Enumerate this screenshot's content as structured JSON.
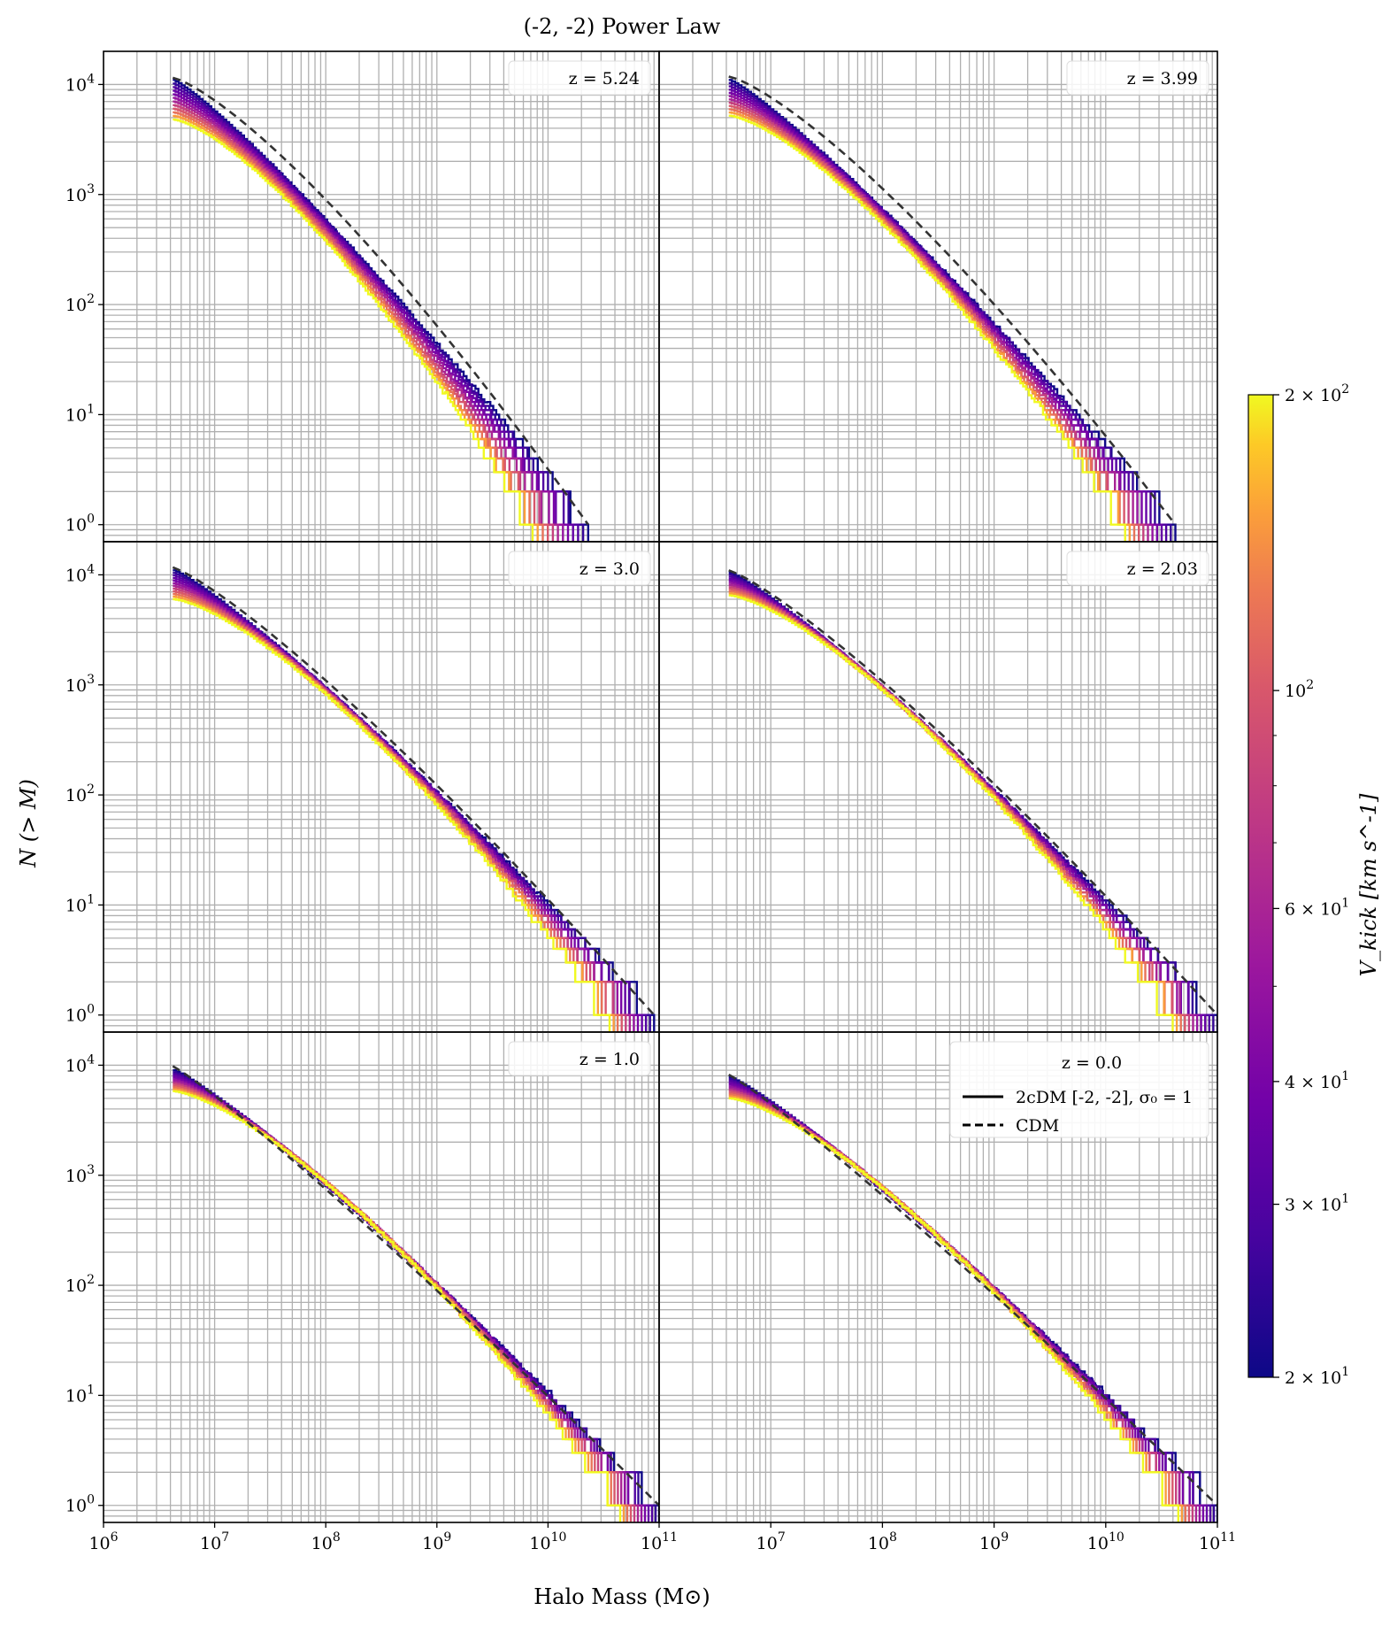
{
  "chart_data": {
    "type": "line",
    "title": "(-2, -2) Power Law",
    "xlabel": "Halo Mass (M⊙)",
    "ylabel": "N (> M)",
    "xscale": "log",
    "yscale": "log",
    "xlim": [
      1000000,
      100000000000
    ],
    "ylim": [
      0.7,
      20000
    ],
    "grid": true,
    "x_tick_labels": [
      "10^6",
      "10^7",
      "10^8",
      "10^9",
      "10^10",
      "10^11"
    ],
    "y_tick_labels": [
      "10^0",
      "10^1",
      "10^2",
      "10^3",
      "10^4"
    ],
    "colorbar": {
      "label": "V_kick [km s^-1]",
      "scale": "log",
      "range": [
        20,
        200
      ],
      "colormap": "plasma",
      "tick_labels": [
        "2 × 10^1",
        "3 × 10^1",
        "4 × 10^1",
        "6 × 10^1",
        "10^2",
        "2 × 10^2"
      ]
    },
    "legend": {
      "title": "z = 0.0",
      "entries": [
        "2cDM [-2, -2], σ₀ = 1",
        "CDM"
      ],
      "placement": "top-right of last panel"
    },
    "panels": [
      {
        "label": "z = 5.24",
        "max_mass": 23000000000.0,
        "cdm_n0": 11500,
        "n0_min": 4800,
        "n0_max": 11000,
        "cdm_bend": 1.3,
        "spread": 0.5
      },
      {
        "label": "z = 3.99",
        "max_mass": 42000000000.0,
        "cdm_n0": 11800,
        "n0_min": 5200,
        "n0_max": 11000,
        "cdm_bend": 1.3,
        "spread": 0.45
      },
      {
        "label": "z = 3.0",
        "max_mass": 90000000000.0,
        "cdm_n0": 11700,
        "n0_min": 6000,
        "n0_max": 11000,
        "cdm_bend": 1.2,
        "spread": 0.4
      },
      {
        "label": "z = 2.03",
        "max_mass": 100000000000.0,
        "cdm_n0": 11000,
        "n0_min": 6500,
        "n0_max": 10500,
        "cdm_bend": 1.2,
        "spread": 0.4
      },
      {
        "label": "z = 1.0",
        "max_mass": 100000000000.0,
        "cdm_n0": 9800,
        "n0_min": 5800,
        "n0_max": 9000,
        "cdm_bend": 1.1,
        "spread": 0.35
      },
      {
        "label": "",
        "max_mass": 100000000000.0,
        "cdm_n0": 8200,
        "n0_min": 5000,
        "n0_max": 7800,
        "cdm_bend": 1.1,
        "spread": 0.35
      }
    ],
    "series_vkick": [
      20,
      25,
      30,
      35,
      40,
      50,
      60,
      80,
      100,
      120,
      150,
      200
    ],
    "min_mass": 4200000.0
  },
  "colors": {
    "cdm_line": "#333333",
    "grid": "#b0b0b0",
    "axes": "#000000"
  }
}
